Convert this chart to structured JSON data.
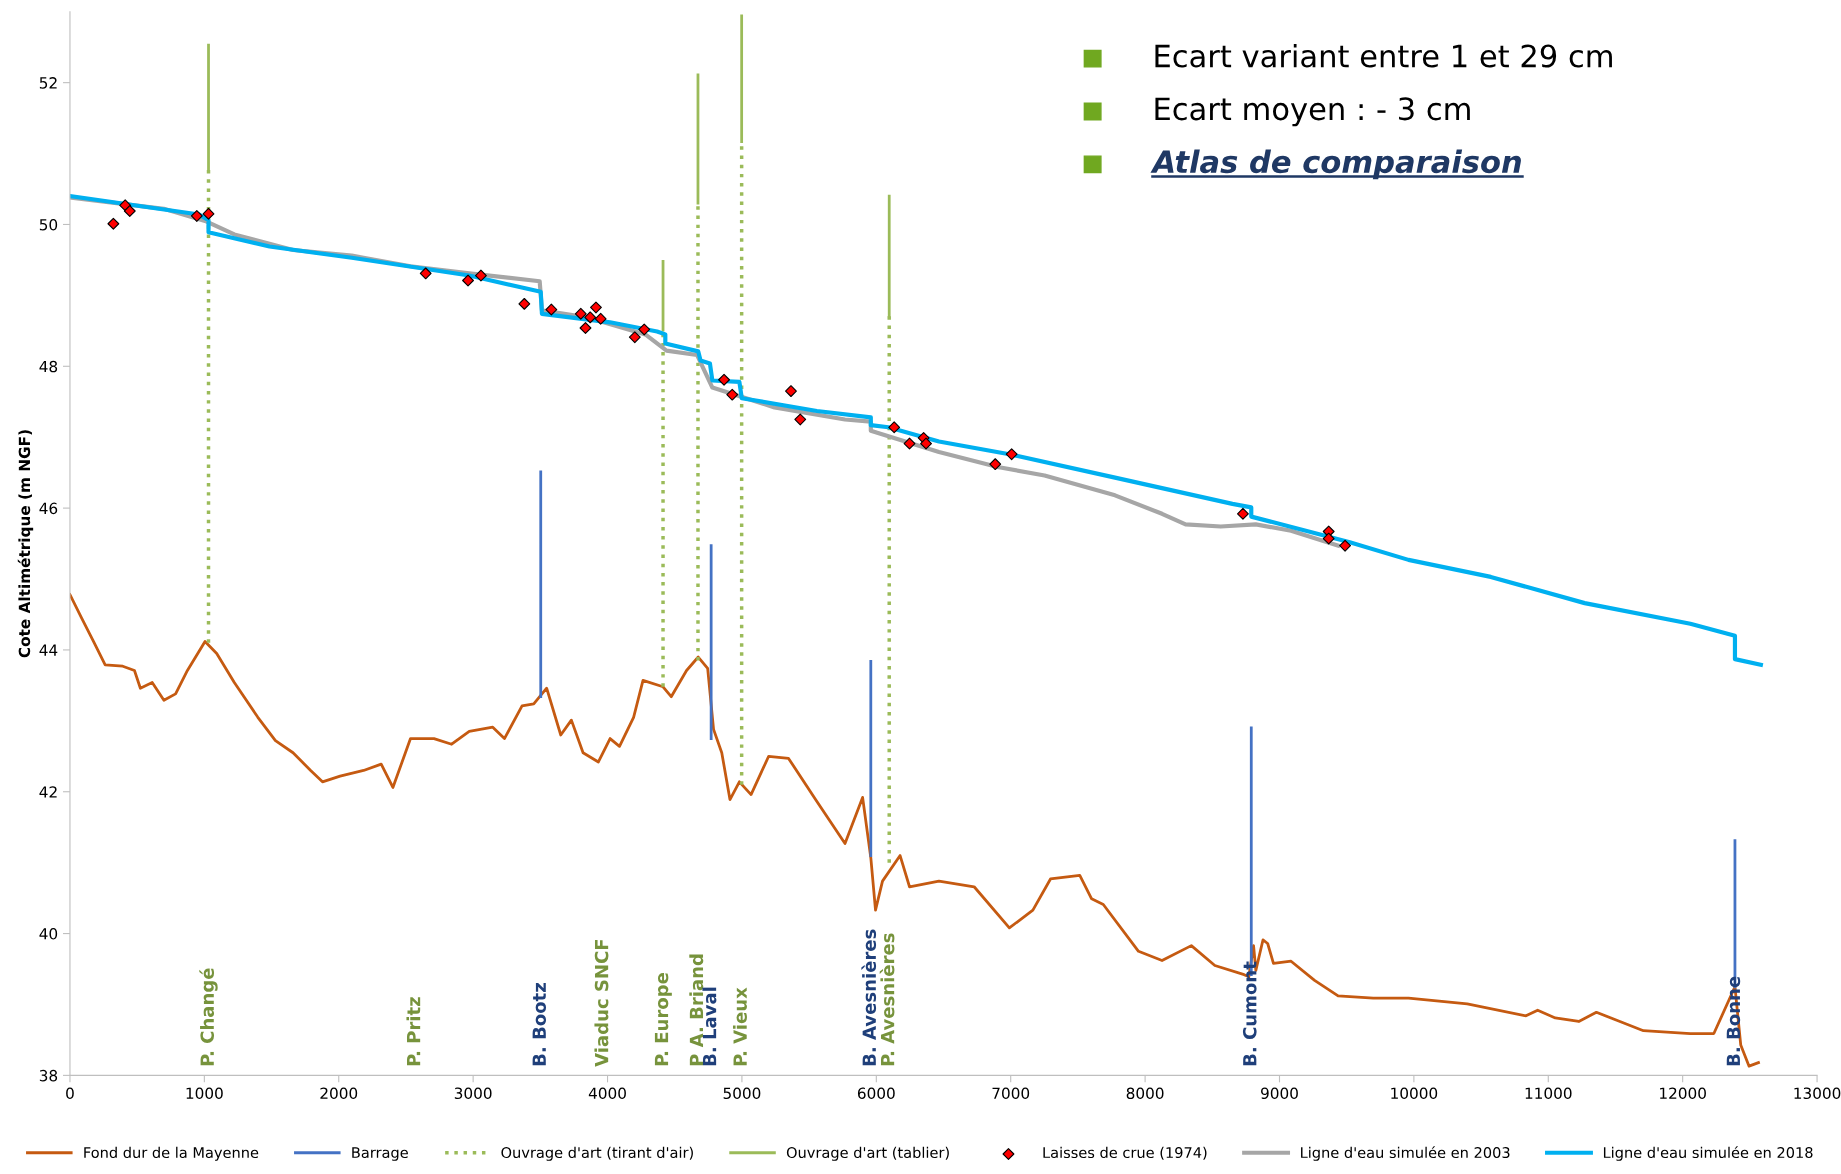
{
  "chart_data": {
    "type": "line",
    "ylabel": "Cote Altimétrique (m NGF)",
    "xlim": [
      0,
      13000
    ],
    "xticks": [
      0,
      1000,
      2000,
      3000,
      4000,
      5000,
      6000,
      7000,
      8000,
      9000,
      10000,
      11000,
      12000,
      13000
    ],
    "ylim": [
      38,
      53
    ],
    "yticks": [
      38,
      40,
      42,
      44,
      46,
      48,
      50,
      52
    ],
    "legend": "bottom",
    "series": [
      {
        "name": "Fond dur de la Mayenne",
        "color": "#c55a11",
        "line_style": "solid",
        "marker": "none",
        "x": [
          0,
          87,
          175,
          262,
          393,
          480,
          524,
          612,
          699,
          786,
          874,
          1005,
          1092,
          1223,
          1398,
          1529,
          1660,
          1791,
          1879,
          2010,
          2185,
          2316,
          2403,
          2534,
          2709,
          2840,
          2971,
          3146,
          3233,
          3364,
          3451,
          3547,
          3652,
          3731,
          3818,
          3932,
          4019,
          4089,
          4194,
          4264,
          4413,
          4474,
          4588,
          4675,
          4745,
          4789,
          4850,
          4911,
          4981,
          5068,
          5199,
          5347,
          5548,
          5767,
          5898,
          5959,
          5994,
          6046,
          6177,
          6247,
          6466,
          6728,
          6990,
          7165,
          7296,
          7514,
          7602,
          7689,
          7951,
          8126,
          8344,
          8519,
          8737,
          8772,
          8807,
          8824,
          8877,
          8912,
          8955,
          9086,
          9261,
          9436,
          9698,
          9960,
          10397,
          10834,
          10921,
          11052,
          11227,
          11358,
          11533,
          11708,
          12057,
          12232,
          12389,
          12432,
          12494,
          12564
        ],
        "values": [
          44.78,
          44.45,
          44.12,
          43.79,
          43.77,
          43.71,
          43.46,
          43.54,
          43.29,
          43.38,
          43.71,
          44.12,
          43.95,
          43.54,
          43.05,
          42.72,
          42.55,
          42.3,
          42.14,
          42.22,
          42.3,
          42.39,
          42.06,
          42.75,
          42.75,
          42.67,
          42.85,
          42.91,
          42.75,
          43.21,
          43.24,
          43.46,
          42.8,
          43.01,
          42.55,
          42.42,
          42.75,
          42.64,
          43.05,
          43.57,
          43.48,
          43.34,
          43.71,
          43.9,
          43.74,
          42.88,
          42.55,
          41.89,
          42.14,
          41.96,
          42.5,
          42.47,
          41.89,
          41.27,
          41.92,
          41.07,
          40.33,
          40.74,
          41.1,
          40.66,
          40.74,
          40.66,
          40.08,
          40.33,
          40.77,
          40.82,
          40.49,
          40.41,
          39.75,
          39.62,
          39.83,
          39.55,
          39.42,
          39.39,
          39.83,
          39.48,
          39.91,
          39.86,
          39.58,
          39.61,
          39.34,
          39.12,
          39.09,
          39.09,
          39.01,
          38.84,
          38.92,
          38.81,
          38.76,
          38.89,
          38.76,
          38.63,
          38.59,
          38.59,
          39.25,
          38.43,
          38.13,
          38.18
        ]
      },
      {
        "name": "Barrage",
        "color": "#4472c4",
        "line_style": "solid",
        "marker": "none",
        "x": [
          3503,
          3503,
          null,
          4771,
          4771,
          null,
          5959,
          5959,
          null,
          8790,
          8790,
          null,
          12389,
          12389
        ],
        "values": [
          43.34,
          46.51,
          null,
          42.75,
          45.47,
          null,
          41.1,
          43.84,
          null,
          39.42,
          42.9,
          null,
          39.25,
          41.31
        ]
      },
      {
        "name": "Ouvrage d'art (tirant d'air)",
        "color": "#9bbb59",
        "line_style": "dotted",
        "marker": "none",
        "x": [
          1031,
          1031,
          null,
          4413,
          4413,
          null,
          4673,
          4673,
          null,
          4998,
          4998,
          null,
          6096,
          6096
        ],
        "values": [
          44.1,
          50.77,
          null,
          43.48,
          48.51,
          null,
          43.85,
          50.3,
          null,
          42.1,
          51.17,
          null,
          41.0,
          48.71
        ]
      },
      {
        "name": "Ouvrage d'art (tablier)",
        "color": "#9bbb59",
        "line_style": "solid",
        "marker": "none",
        "x": [
          1031,
          1031,
          null,
          4413,
          4413,
          null,
          4673,
          4673,
          null,
          4998,
          4998,
          null,
          6096,
          6096
        ],
        "values": [
          50.77,
          52.53,
          null,
          48.51,
          49.48,
          null,
          50.3,
          52.11,
          null,
          51.17,
          52.94,
          null,
          48.71,
          50.4
        ]
      },
      {
        "name": "Laisses de crue (1974)",
        "type": "scatter",
        "color": "#ff0000",
        "marker": "diamond",
        "x": [
          323,
          411,
          445,
          944,
          1031,
          2647,
          2962,
          3058,
          3381,
          3582,
          3801,
          3836,
          3871,
          3914,
          3949,
          4203,
          4273,
          4867,
          4928,
          5365,
          5434,
          6133,
          6247,
          6352,
          6370,
          6885,
          7007,
          8728,
          9366,
          9366,
          9488
        ],
        "values": [
          50.01,
          50.27,
          50.19,
          50.12,
          50.15,
          49.31,
          49.21,
          49.28,
          48.88,
          48.8,
          48.74,
          48.54,
          48.69,
          48.83,
          48.67,
          48.41,
          48.52,
          47.81,
          47.6,
          47.65,
          47.25,
          47.14,
          46.91,
          46.99,
          46.91,
          46.62,
          46.76,
          45.92,
          45.67,
          45.57,
          45.47
        ]
      },
      {
        "name": "Ligne d'eau simulée en 2003",
        "color": "#a6a6a6",
        "line_style": "solid",
        "marker": "none",
        "x": [
          0,
          699,
          1005,
          1223,
          1660,
          2097,
          2534,
          2971,
          3495,
          3512,
          3844,
          4281,
          4439,
          4666,
          4780,
          5243,
          5767,
          5959,
          5959,
          6466,
          6903,
          7252,
          7776,
          8126,
          8301,
          8563,
          8824,
          9086,
          9436
        ],
        "values": [
          50.38,
          50.22,
          50.05,
          49.86,
          49.64,
          49.56,
          49.41,
          49.31,
          49.2,
          48.79,
          48.69,
          48.45,
          48.22,
          48.16,
          47.7,
          47.42,
          47.25,
          47.22,
          47.09,
          46.79,
          46.58,
          46.46,
          46.18,
          45.92,
          45.77,
          45.74,
          45.77,
          45.68,
          45.47
        ]
      },
      {
        "name": "Ligne d'eau simulée en 2018",
        "color": "#00b0f0",
        "line_style": "solid",
        "marker": "none",
        "x": [
          0,
          961,
          1031,
          1031,
          1485,
          2097,
          2971,
          3503,
          3512,
          4019,
          4369,
          4430,
          4430,
          4675,
          4692,
          4762,
          4780,
          4981,
          4999,
          5558,
          5959,
          5959,
          6090,
          6466,
          6990,
          7776,
          8650,
          8790,
          8790,
          9523,
          9960,
          10572,
          11271,
          12057,
          12389,
          12389,
          12582
        ],
        "values": [
          50.4,
          50.14,
          50.06,
          49.89,
          49.69,
          49.53,
          49.28,
          49.05,
          48.74,
          48.62,
          48.49,
          48.45,
          48.32,
          48.21,
          48.08,
          48.04,
          47.8,
          47.78,
          47.55,
          47.37,
          47.28,
          47.17,
          47.14,
          46.94,
          46.76,
          46.43,
          46.06,
          46.01,
          45.88,
          45.52,
          45.27,
          45.03,
          44.66,
          44.37,
          44.2,
          43.87,
          43.79
        ]
      }
    ],
    "annotations": [
      "Ecart variant entre 1 et 29 cm",
      "Ecart moyen : - 3 cm",
      "Atlas de comparaison",
      "P. Changé",
      "P. Pritz",
      "B. Bootz",
      "Viaduc SNCF",
      "P. Europe",
      "P A. Briand",
      "B. Laval",
      "P. Vieux",
      "B. Avesnières",
      "P. Avesnières",
      "B. Cumont",
      "B. Bonne"
    ]
  }
}
